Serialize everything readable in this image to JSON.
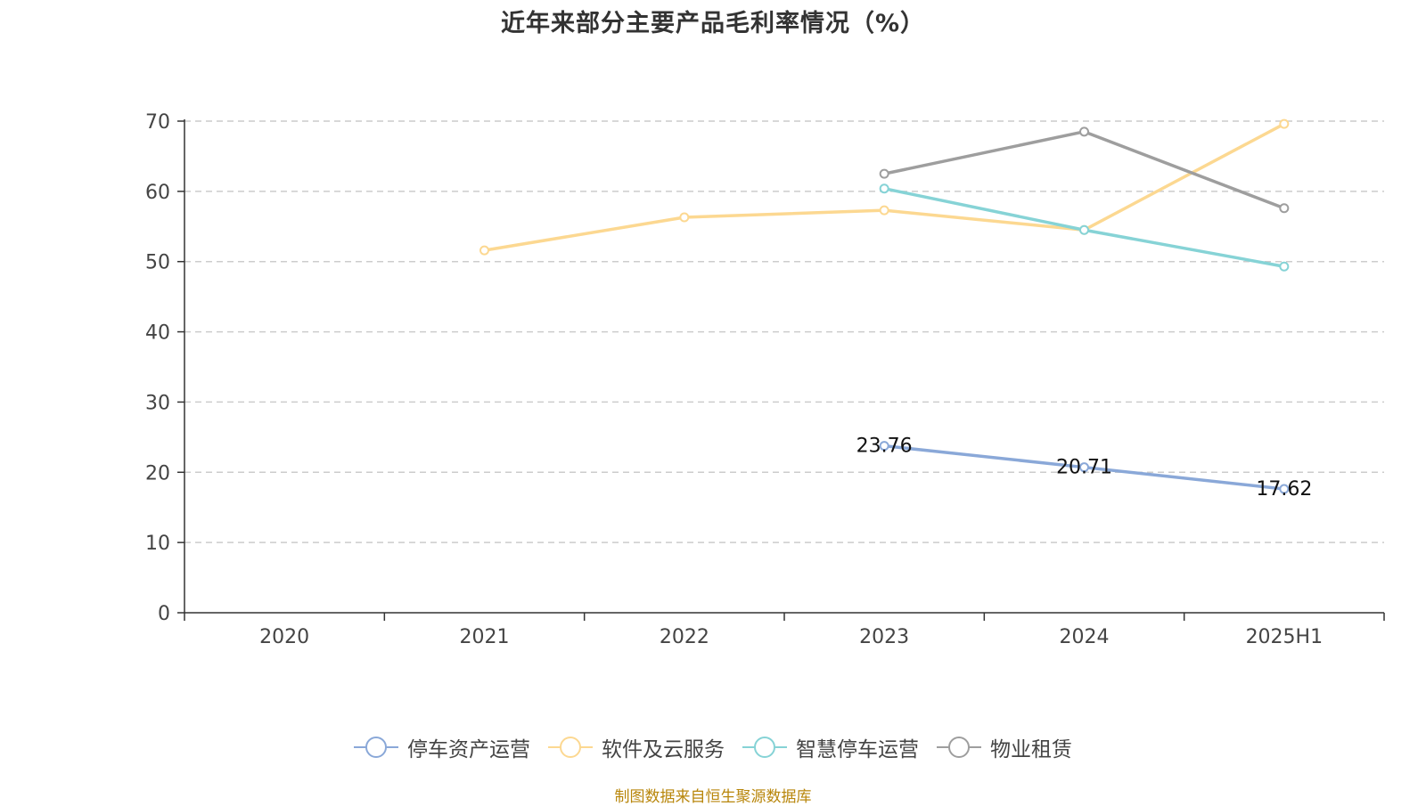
{
  "chart_data": {
    "type": "line",
    "title": "近年来部分主要产品毛利率情况（%）",
    "categories": [
      "2020",
      "2021",
      "2022",
      "2023",
      "2024",
      "2025H1"
    ],
    "ylim": [
      0,
      70
    ],
    "yticks": [
      0,
      10,
      20,
      30,
      40,
      50,
      60,
      70
    ],
    "grid": true,
    "legend_position": "bottom",
    "series": [
      {
        "name": "停车资产运营",
        "color": "#8aa8d8",
        "values": [
          null,
          null,
          null,
          23.76,
          20.71,
          17.62
        ],
        "show_labels": true,
        "labels": [
          null,
          null,
          null,
          "23.76",
          "20.71",
          "17.62"
        ]
      },
      {
        "name": "软件及云服务",
        "color": "#fcd891",
        "values": [
          null,
          51.6,
          56.3,
          57.3,
          54.5,
          69.6
        ],
        "show_labels": false
      },
      {
        "name": "智慧停车运营",
        "color": "#86d3d6",
        "values": [
          null,
          null,
          null,
          60.4,
          54.5,
          49.3
        ],
        "show_labels": false
      },
      {
        "name": "物业租赁",
        "color": "#9e9e9e",
        "values": [
          null,
          null,
          null,
          62.5,
          68.5,
          57.6
        ],
        "show_labels": false
      }
    ]
  },
  "source_note": "制图数据来自恒生聚源数据库"
}
